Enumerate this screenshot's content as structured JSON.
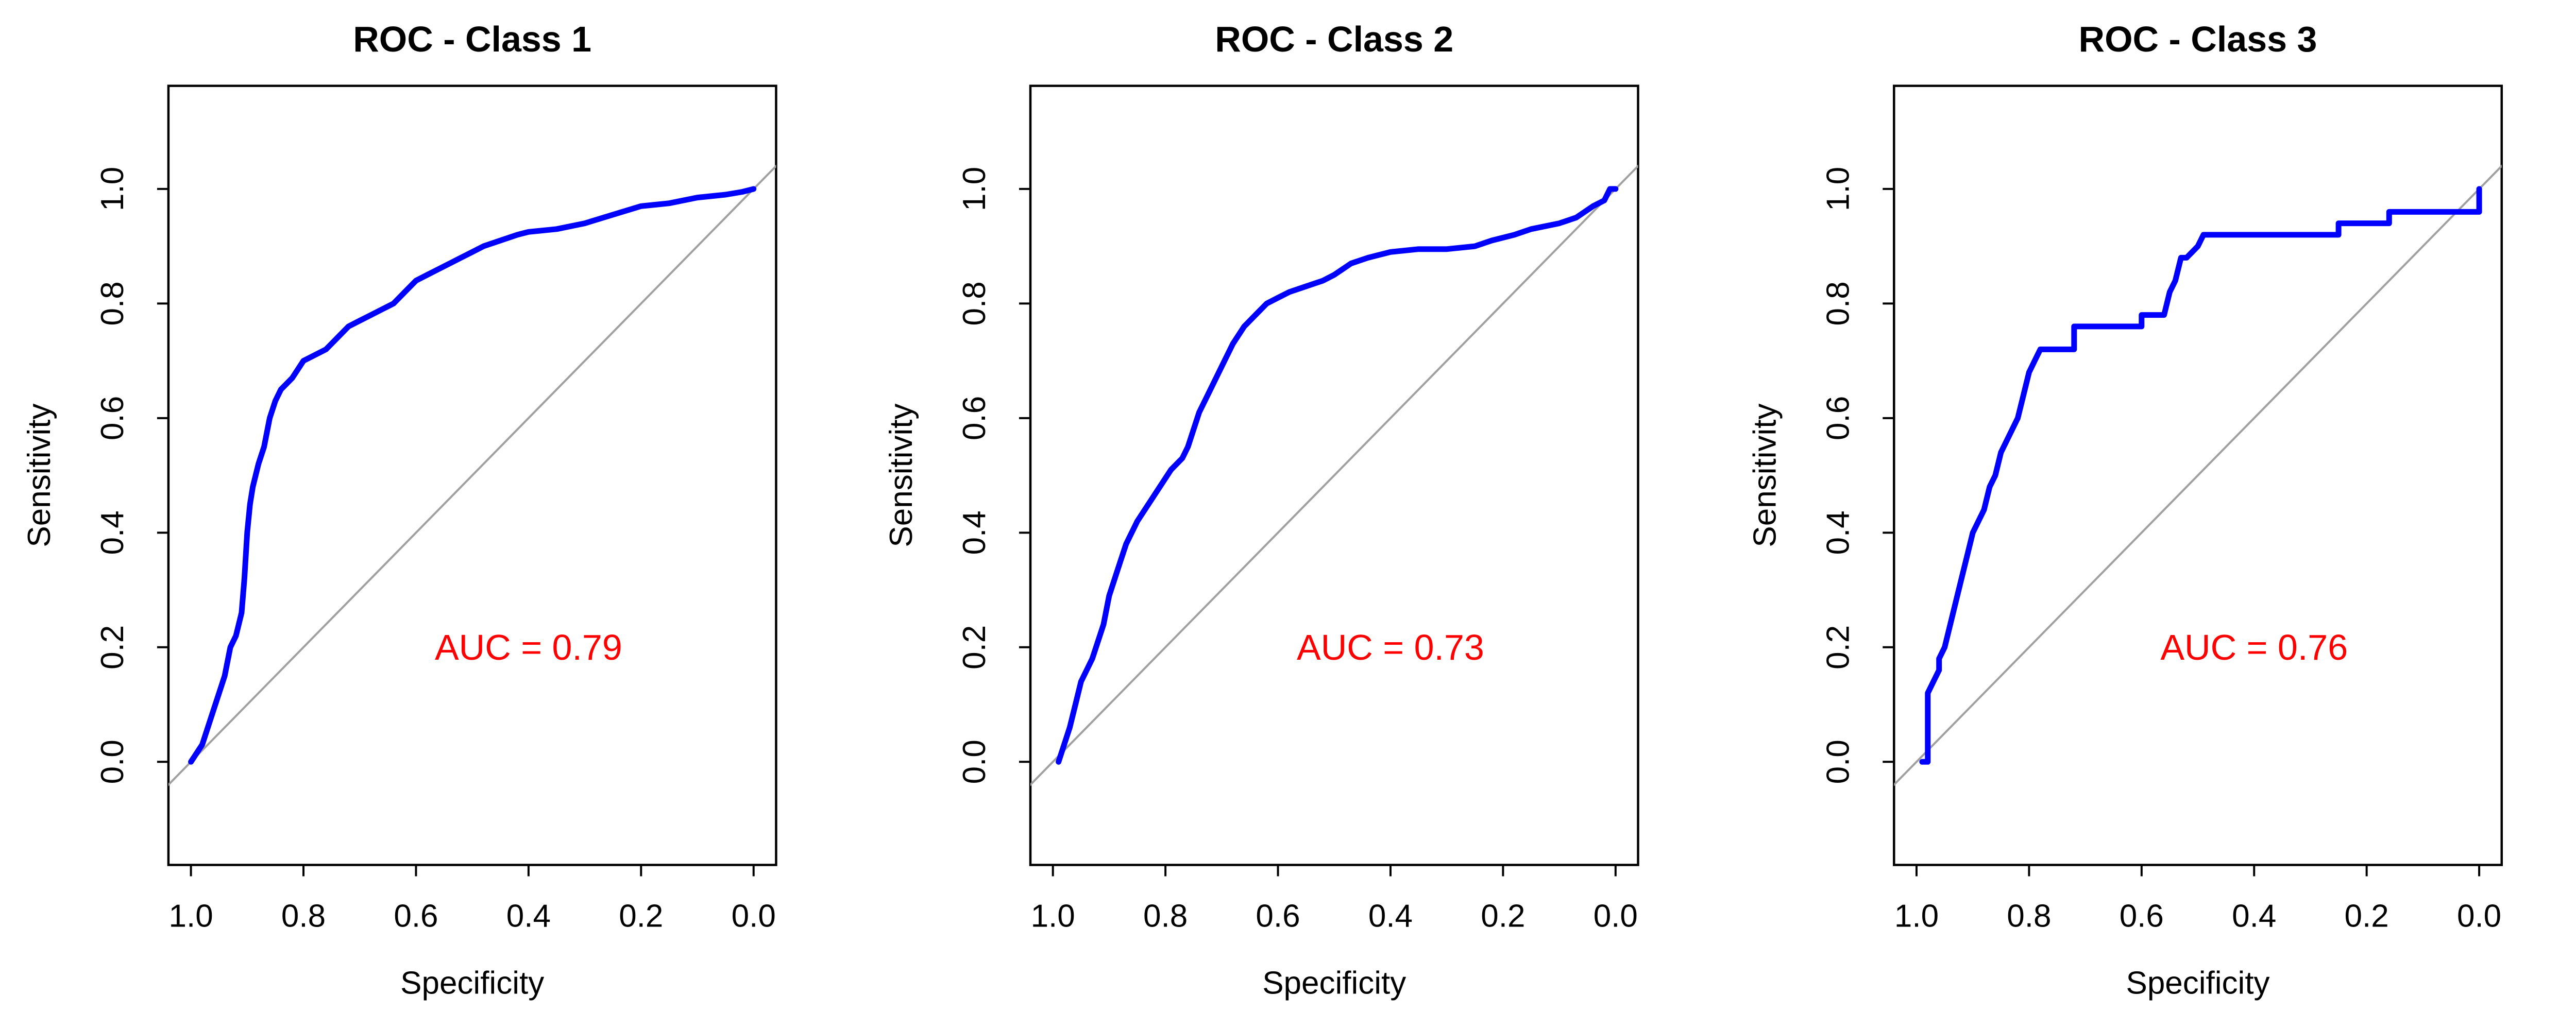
{
  "chart_data": [
    {
      "type": "line",
      "title": "ROC - Class 1",
      "xlabel": "Specificity",
      "ylabel": "Sensitivity",
      "xlim": [
        1.0,
        0.0
      ],
      "ylim": [
        0.0,
        1.0
      ],
      "x_reversed": true,
      "xticks": [
        "1.0",
        "0.8",
        "0.6",
        "0.4",
        "0.2",
        "0.0"
      ],
      "yticks": [
        "0.0",
        "0.2",
        "0.4",
        "0.6",
        "0.8",
        "1.0"
      ],
      "reference_line": {
        "from": [
          1.0,
          0.0
        ],
        "to": [
          0.0,
          1.0
        ]
      },
      "annotation": "AUC = 0.79",
      "series": [
        {
          "x": [
            1.0,
            0.98,
            0.97,
            0.96,
            0.95,
            0.94,
            0.93,
            0.92,
            0.91,
            0.905,
            0.9,
            0.895,
            0.89,
            0.88,
            0.87,
            0.86,
            0.85,
            0.84,
            0.82,
            0.8,
            0.78,
            0.76,
            0.74,
            0.72,
            0.7,
            0.68,
            0.66,
            0.64,
            0.62,
            0.6,
            0.58,
            0.56,
            0.54,
            0.52,
            0.5,
            0.48,
            0.45,
            0.42,
            0.4,
            0.35,
            0.3,
            0.25,
            0.2,
            0.15,
            0.1,
            0.05,
            0.02,
            0.0
          ],
          "y": [
            0.0,
            0.03,
            0.06,
            0.09,
            0.12,
            0.15,
            0.2,
            0.22,
            0.26,
            0.32,
            0.4,
            0.45,
            0.48,
            0.52,
            0.55,
            0.6,
            0.63,
            0.65,
            0.67,
            0.7,
            0.71,
            0.72,
            0.74,
            0.76,
            0.77,
            0.78,
            0.79,
            0.8,
            0.82,
            0.84,
            0.85,
            0.86,
            0.87,
            0.88,
            0.89,
            0.9,
            0.91,
            0.92,
            0.925,
            0.93,
            0.94,
            0.955,
            0.97,
            0.975,
            0.985,
            0.99,
            0.995,
            1.0
          ],
          "color": "#0000ff"
        }
      ],
      "annotation_color": "#ff0000"
    },
    {
      "type": "line",
      "title": "ROC - Class 2",
      "xlabel": "Specificity",
      "ylabel": "Sensitivity",
      "xlim": [
        1.0,
        0.0
      ],
      "ylim": [
        0.0,
        1.0
      ],
      "x_reversed": true,
      "xticks": [
        "1.0",
        "0.8",
        "0.6",
        "0.4",
        "0.2",
        "0.0"
      ],
      "yticks": [
        "0.0",
        "0.2",
        "0.4",
        "0.6",
        "0.8",
        "1.0"
      ],
      "reference_line": {
        "from": [
          1.0,
          0.0
        ],
        "to": [
          0.0,
          1.0
        ]
      },
      "annotation": "AUC = 0.73",
      "series": [
        {
          "x": [
            0.99,
            0.98,
            0.97,
            0.96,
            0.95,
            0.93,
            0.91,
            0.9,
            0.89,
            0.88,
            0.87,
            0.85,
            0.83,
            0.81,
            0.79,
            0.77,
            0.76,
            0.75,
            0.74,
            0.72,
            0.7,
            0.68,
            0.66,
            0.64,
            0.62,
            0.6,
            0.58,
            0.55,
            0.52,
            0.5,
            0.47,
            0.44,
            0.4,
            0.35,
            0.3,
            0.25,
            0.22,
            0.18,
            0.15,
            0.1,
            0.07,
            0.04,
            0.02,
            0.01,
            0.0
          ],
          "y": [
            0.0,
            0.03,
            0.06,
            0.1,
            0.14,
            0.18,
            0.24,
            0.29,
            0.32,
            0.35,
            0.38,
            0.42,
            0.45,
            0.48,
            0.51,
            0.53,
            0.55,
            0.58,
            0.61,
            0.65,
            0.69,
            0.73,
            0.76,
            0.78,
            0.8,
            0.81,
            0.82,
            0.83,
            0.84,
            0.85,
            0.87,
            0.88,
            0.89,
            0.895,
            0.895,
            0.9,
            0.91,
            0.92,
            0.93,
            0.94,
            0.95,
            0.97,
            0.98,
            1.0,
            1.0
          ],
          "color": "#0000ff"
        }
      ],
      "annotation_color": "#ff0000"
    },
    {
      "type": "line",
      "title": "ROC - Class 3",
      "xlabel": "Specificity",
      "ylabel": "Sensitivity",
      "xlim": [
        1.0,
        0.0
      ],
      "ylim": [
        0.0,
        1.0
      ],
      "x_reversed": true,
      "xticks": [
        "1.0",
        "0.8",
        "0.6",
        "0.4",
        "0.2",
        "0.0"
      ],
      "yticks": [
        "0.0",
        "0.2",
        "0.4",
        "0.6",
        "0.8",
        "1.0"
      ],
      "reference_line": {
        "from": [
          1.0,
          0.0
        ],
        "to": [
          0.0,
          1.0
        ]
      },
      "annotation": "AUC = 0.76",
      "series": [
        {
          "x": [
            0.99,
            0.98,
            0.98,
            0.97,
            0.96,
            0.96,
            0.95,
            0.94,
            0.93,
            0.92,
            0.91,
            0.9,
            0.89,
            0.88,
            0.87,
            0.86,
            0.85,
            0.84,
            0.83,
            0.82,
            0.81,
            0.8,
            0.79,
            0.78,
            0.77,
            0.72,
            0.72,
            0.6,
            0.6,
            0.56,
            0.55,
            0.54,
            0.53,
            0.52,
            0.5,
            0.49,
            0.48,
            0.25,
            0.25,
            0.16,
            0.16,
            0.0,
            0.0
          ],
          "y": [
            0.0,
            0.0,
            0.12,
            0.14,
            0.16,
            0.18,
            0.2,
            0.24,
            0.28,
            0.32,
            0.36,
            0.4,
            0.42,
            0.44,
            0.48,
            0.5,
            0.54,
            0.56,
            0.58,
            0.6,
            0.64,
            0.68,
            0.7,
            0.72,
            0.72,
            0.72,
            0.76,
            0.76,
            0.78,
            0.78,
            0.82,
            0.84,
            0.88,
            0.88,
            0.9,
            0.92,
            0.92,
            0.92,
            0.94,
            0.94,
            0.96,
            0.96,
            1.0
          ],
          "color": "#0000ff"
        }
      ],
      "annotation_color": "#ff0000"
    }
  ]
}
